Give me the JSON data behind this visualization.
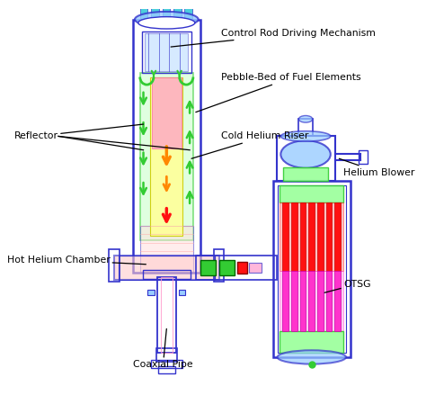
{
  "bg_color": "#ffffff",
  "blue": "#3333cc",
  "blue2": "#5555ee",
  "cyan": "#00bbcc",
  "lblue": "#99ccff",
  "lblue2": "#aaddff",
  "green": "#33cc33",
  "green2": "#66ff00",
  "lgreen": "#99ff99",
  "yellow": "#ffff99",
  "orange": "#ff8800",
  "orange2": "#ffaa00",
  "red": "#ff1111",
  "pink": "#ff99cc",
  "pink2": "#ffaadd",
  "magenta": "#ff33cc",
  "purple": "#9966cc",
  "labels": {
    "control_rod": "Control Rod Driving Mechanism",
    "pebble_bed": "Pebble-Bed of Fuel Elements",
    "reflector": "Reflector",
    "cold_helium": "Cold Helium Riser",
    "hot_helium": "Hot Helium Chamber",
    "coaxial_pipe": "Coaxial Pipe",
    "helium_blower": "Helium Blower",
    "otsg": "OTSG"
  }
}
